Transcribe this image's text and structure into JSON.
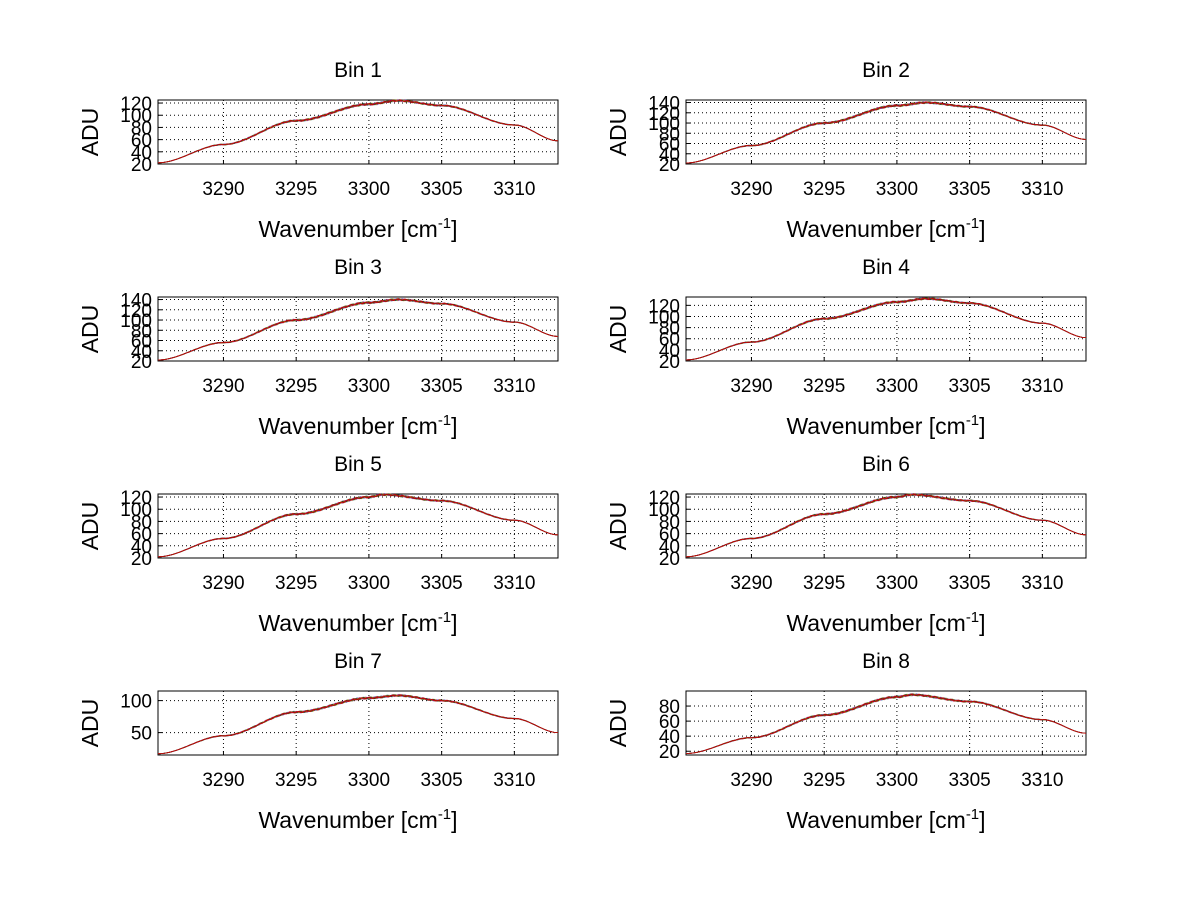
{
  "chart_data": [
    {
      "type": "line",
      "title": "Bin 1",
      "xlabel": "Wavenumber [cm",
      "xlabel_sup": "-1",
      "xlabel_end": "]",
      "ylabel": "ADU",
      "xlim": [
        3285.5,
        3313
      ],
      "ylim": [
        20,
        125
      ],
      "xticks": [
        3290,
        3295,
        3300,
        3305,
        3310
      ],
      "yticks": [
        20,
        40,
        60,
        80,
        100,
        120
      ],
      "grid": true,
      "series": [
        {
          "color": "#cc0000",
          "peak_x": 3302,
          "x": [
            3285.5,
            3290,
            3295,
            3300,
            3302,
            3305,
            3310,
            3313
          ],
          "y": [
            22,
            52,
            91,
            118,
            124,
            116,
            84,
            58
          ]
        }
      ]
    },
    {
      "type": "line",
      "title": "Bin 2",
      "xlabel": "Wavenumber [cm",
      "xlabel_sup": "-1",
      "xlabel_end": "]",
      "ylabel": "ADU",
      "xlim": [
        3285.5,
        3313
      ],
      "ylim": [
        20,
        145
      ],
      "xticks": [
        3290,
        3295,
        3300,
        3305,
        3310
      ],
      "yticks": [
        20,
        40,
        60,
        80,
        100,
        120,
        140
      ],
      "grid": true,
      "series": [
        {
          "color": "#cc0000",
          "peak_x": 3302,
          "x": [
            3285.5,
            3290,
            3295,
            3300,
            3302,
            3305,
            3310,
            3313
          ],
          "y": [
            22,
            56,
            100,
            134,
            140,
            132,
            96,
            68
          ]
        }
      ]
    },
    {
      "type": "line",
      "title": "Bin 3",
      "xlabel": "Wavenumber [cm",
      "xlabel_sup": "-1",
      "xlabel_end": "]",
      "ylabel": "ADU",
      "xlim": [
        3285.5,
        3313
      ],
      "ylim": [
        20,
        145
      ],
      "xticks": [
        3290,
        3295,
        3300,
        3305,
        3310
      ],
      "yticks": [
        20,
        40,
        60,
        80,
        100,
        120,
        140
      ],
      "grid": true,
      "series": [
        {
          "color": "#cc0000",
          "peak_x": 3302,
          "x": [
            3285.5,
            3290,
            3295,
            3300,
            3302,
            3305,
            3310,
            3313
          ],
          "y": [
            22,
            56,
            100,
            134,
            140,
            132,
            96,
            68
          ]
        }
      ]
    },
    {
      "type": "line",
      "title": "Bin 4",
      "xlabel": "Wavenumber [cm",
      "xlabel_sup": "-1",
      "xlabel_end": "]",
      "ylabel": "ADU",
      "xlim": [
        3285.5,
        3313
      ],
      "ylim": [
        20,
        135
      ],
      "xticks": [
        3290,
        3295,
        3300,
        3305,
        3310
      ],
      "yticks": [
        20,
        40,
        60,
        80,
        100,
        120
      ],
      "grid": true,
      "series": [
        {
          "color": "#cc0000",
          "peak_x": 3302,
          "x": [
            3285.5,
            3290,
            3295,
            3300,
            3302,
            3305,
            3310,
            3313
          ],
          "y": [
            22,
            54,
            96,
            126,
            132,
            124,
            88,
            62
          ]
        }
      ]
    },
    {
      "type": "line",
      "title": "Bin 5",
      "xlabel": "Wavenumber [cm",
      "xlabel_sup": "-1",
      "xlabel_end": "]",
      "ylabel": "ADU",
      "xlim": [
        3285.5,
        3313
      ],
      "ylim": [
        20,
        125
      ],
      "xticks": [
        3290,
        3295,
        3300,
        3305,
        3310
      ],
      "yticks": [
        20,
        40,
        60,
        80,
        100,
        120
      ],
      "grid": true,
      "series": [
        {
          "color": "#cc0000",
          "peak_x": 3301,
          "x": [
            3285.5,
            3290,
            3295,
            3300,
            3301,
            3305,
            3310,
            3313
          ],
          "y": [
            22,
            52,
            92,
            120,
            124,
            114,
            82,
            58
          ]
        }
      ]
    },
    {
      "type": "line",
      "title": "Bin 6",
      "xlabel": "Wavenumber [cm",
      "xlabel_sup": "-1",
      "xlabel_end": "]",
      "ylabel": "ADU",
      "xlim": [
        3285.5,
        3313
      ],
      "ylim": [
        20,
        125
      ],
      "xticks": [
        3290,
        3295,
        3300,
        3305,
        3310
      ],
      "yticks": [
        20,
        40,
        60,
        80,
        100,
        120
      ],
      "grid": true,
      "series": [
        {
          "color": "#cc0000",
          "peak_x": 3301,
          "x": [
            3285.5,
            3290,
            3295,
            3300,
            3301,
            3305,
            3310,
            3313
          ],
          "y": [
            22,
            52,
            92,
            120,
            124,
            114,
            82,
            58
          ]
        }
      ]
    },
    {
      "type": "line",
      "title": "Bin 7",
      "xlabel": "Wavenumber [cm",
      "xlabel_sup": "-1",
      "xlabel_end": "]",
      "ylabel": "ADU",
      "xlim": [
        3285.5,
        3313
      ],
      "ylim": [
        15,
        115
      ],
      "xticks": [
        3290,
        3295,
        3300,
        3305,
        3310
      ],
      "yticks": [
        50,
        100
      ],
      "grid": true,
      "series": [
        {
          "color": "#cc0000",
          "peak_x": 3302,
          "x": [
            3285.5,
            3290,
            3295,
            3300,
            3302,
            3305,
            3310,
            3313
          ],
          "y": [
            17,
            45,
            82,
            104,
            108,
            100,
            72,
            50
          ]
        }
      ]
    },
    {
      "type": "line",
      "title": "Bin 8",
      "xlabel": "Wavenumber [cm",
      "xlabel_sup": "-1",
      "xlabel_end": "]",
      "ylabel": "ADU",
      "xlim": [
        3285.5,
        3313
      ],
      "ylim": [
        15,
        100
      ],
      "xticks": [
        3290,
        3295,
        3300,
        3305,
        3310
      ],
      "yticks": [
        20,
        40,
        60,
        80
      ],
      "grid": true,
      "series": [
        {
          "color": "#cc0000",
          "peak_x": 3301,
          "x": [
            3285.5,
            3290,
            3295,
            3300,
            3301,
            3305,
            3310,
            3313
          ],
          "y": [
            17,
            38,
            68,
            92,
            95,
            86,
            62,
            44
          ]
        }
      ]
    }
  ]
}
